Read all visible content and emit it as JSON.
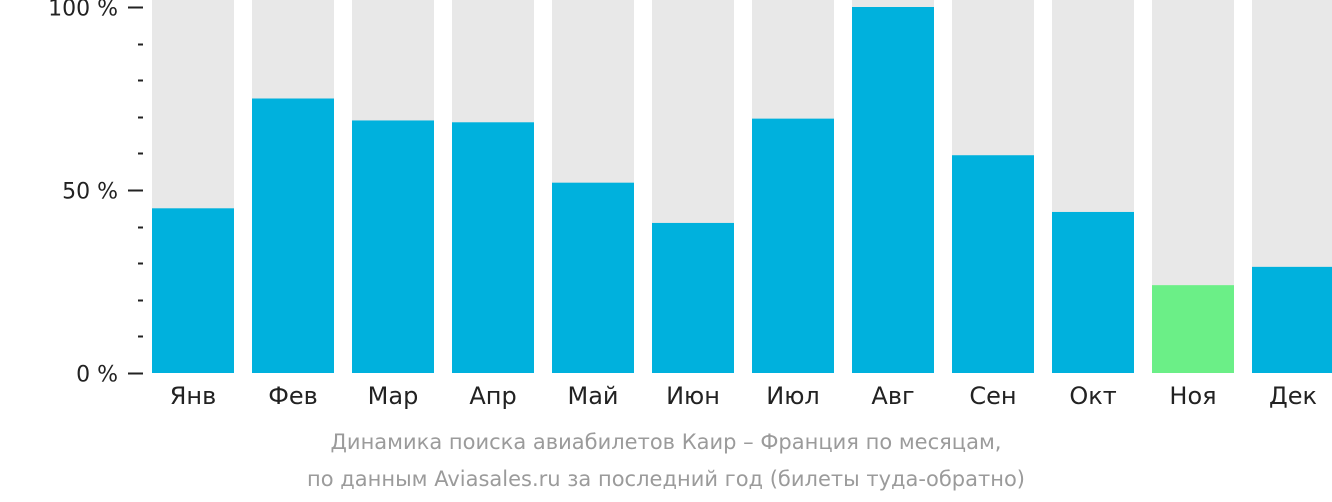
{
  "chart_data": {
    "type": "bar",
    "categories": [
      "Янв",
      "Фев",
      "Мар",
      "Апр",
      "Май",
      "Июн",
      "Июл",
      "Авг",
      "Сен",
      "Окт",
      "Ноя",
      "Дек"
    ],
    "values": [
      45,
      75,
      69,
      68.5,
      52,
      41,
      69.5,
      100,
      59.5,
      44,
      24,
      29
    ],
    "ylim": [
      0,
      100
    ],
    "yticks": [
      {
        "value": 0,
        "label": "0 %"
      },
      {
        "value": 50,
        "label": "50 %"
      },
      {
        "value": 100,
        "label": "100 %"
      }
    ],
    "minor_tick_step": 10,
    "highlight_index": 10,
    "colors": {
      "bar": "#00b1dd",
      "highlight": "#6bef87",
      "background_bar": "#e8e8e8",
      "axis": "#222222"
    },
    "caption_line1": "Динамика поиска авиабилетов Каир – Франция по месяцам,",
    "caption_line2": "по данным Aviasales.ru за последний год (билеты туда-обратно)"
  }
}
